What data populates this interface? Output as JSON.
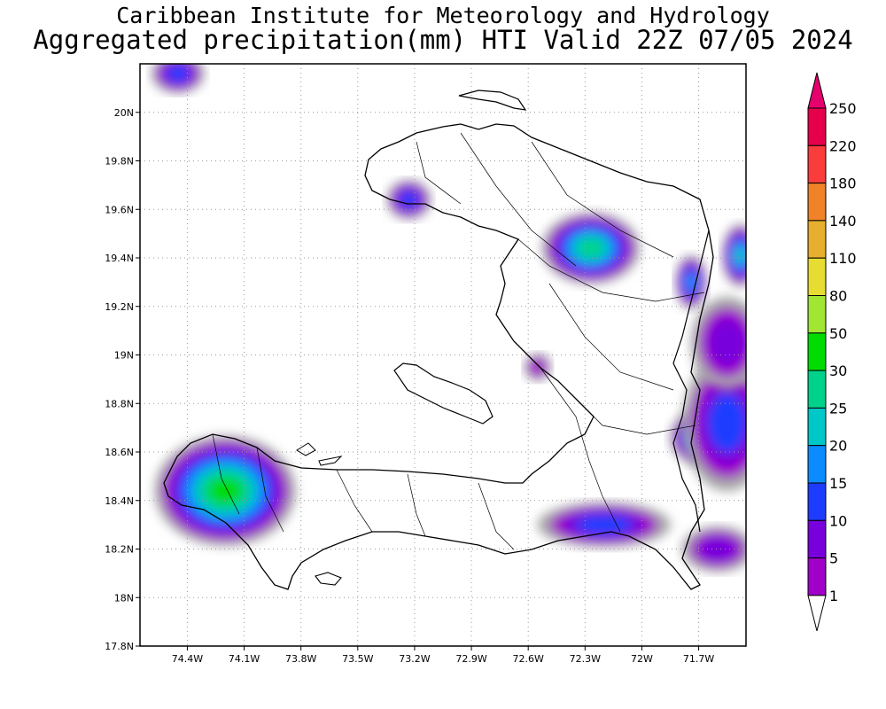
{
  "title": "Caribbean Institute for Meteorology and Hydrology",
  "subtitle": "Aggregated precipitation(mm) HTI Valid 22Z 07/05 2024",
  "map": {
    "lon_range": [
      -74.65,
      -71.45
    ],
    "lat_range": [
      17.8,
      20.2
    ],
    "lon_ticks": [
      {
        "v": -74.4,
        "label": "74.4W"
      },
      {
        "v": -74.1,
        "label": "74.1W"
      },
      {
        "v": -73.8,
        "label": "73.8W"
      },
      {
        "v": -73.5,
        "label": "73.5W"
      },
      {
        "v": -73.2,
        "label": "73.2W"
      },
      {
        "v": -72.9,
        "label": "72.9W"
      },
      {
        "v": -72.6,
        "label": "72.6W"
      },
      {
        "v": -72.3,
        "label": "72.3W"
      },
      {
        "v": -72.0,
        "label": "72W"
      },
      {
        "v": -71.7,
        "label": "71.7W"
      }
    ],
    "lat_ticks": [
      {
        "v": 20.0,
        "label": "20N"
      },
      {
        "v": 19.8,
        "label": "19.8N"
      },
      {
        "v": 19.6,
        "label": "19.6N"
      },
      {
        "v": 19.4,
        "label": "19.4N"
      },
      {
        "v": 19.2,
        "label": "19.2N"
      },
      {
        "v": 19.0,
        "label": "19N"
      },
      {
        "v": 18.8,
        "label": "18.8N"
      },
      {
        "v": 18.6,
        "label": "18.6N"
      },
      {
        "v": 18.4,
        "label": "18.4N"
      },
      {
        "v": 18.2,
        "label": "18.2N"
      },
      {
        "v": 18.0,
        "label": "18N"
      },
      {
        "v": 17.8,
        "label": "17.8N"
      }
    ],
    "grid": true,
    "rain_cells": [
      {
        "lon": -74.2,
        "lat": 18.44,
        "rx": 0.09,
        "ry": 0.055,
        "level": 7
      },
      {
        "lon": -72.27,
        "lat": 19.44,
        "rx": 0.07,
        "ry": 0.04,
        "level": 6
      },
      {
        "lon": -71.48,
        "lat": 19.41,
        "rx": 0.03,
        "ry": 0.04,
        "level": 5
      },
      {
        "lon": -71.69,
        "lat": 18.66,
        "rx": 0.05,
        "ry": 0.035,
        "level": 5
      },
      {
        "lon": -71.74,
        "lat": 19.3,
        "rx": 0.03,
        "ry": 0.04,
        "level": 4
      },
      {
        "lon": -73.23,
        "lat": 19.64,
        "rx": 0.05,
        "ry": 0.035,
        "level": 3
      },
      {
        "lon": -74.45,
        "lat": 20.16,
        "rx": 0.06,
        "ry": 0.035,
        "level": 3
      },
      {
        "lon": -72.2,
        "lat": 18.3,
        "rx": 0.15,
        "ry": 0.04,
        "level": 3
      },
      {
        "lon": -71.55,
        "lat": 18.72,
        "rx": 0.1,
        "ry": 0.12,
        "level": 3
      },
      {
        "lon": -71.55,
        "lat": 19.05,
        "rx": 0.1,
        "ry": 0.1,
        "level": 2
      },
      {
        "lon": -72.55,
        "lat": 18.95,
        "rx": 0.05,
        "ry": 0.04,
        "level": 1
      },
      {
        "lon": -71.6,
        "lat": 18.2,
        "rx": 0.1,
        "ry": 0.05,
        "level": 2
      }
    ]
  },
  "colorbar": {
    "levels": [
      "1",
      "5",
      "10",
      "15",
      "20",
      "25",
      "30",
      "50",
      "80",
      "110",
      "140",
      "180",
      "220",
      "250"
    ],
    "colors": [
      "#a8a8a8",
      "#a000c8",
      "#7800dc",
      "#1e3cff",
      "#0a8cff",
      "#00c8c8",
      "#00d28c",
      "#00dc00",
      "#a0e632",
      "#e6dc32",
      "#e6af2d",
      "#f08228",
      "#fa3c3c",
      "#e6004b"
    ],
    "under_color": "#ffffff",
    "over_color": "#e6006e"
  }
}
